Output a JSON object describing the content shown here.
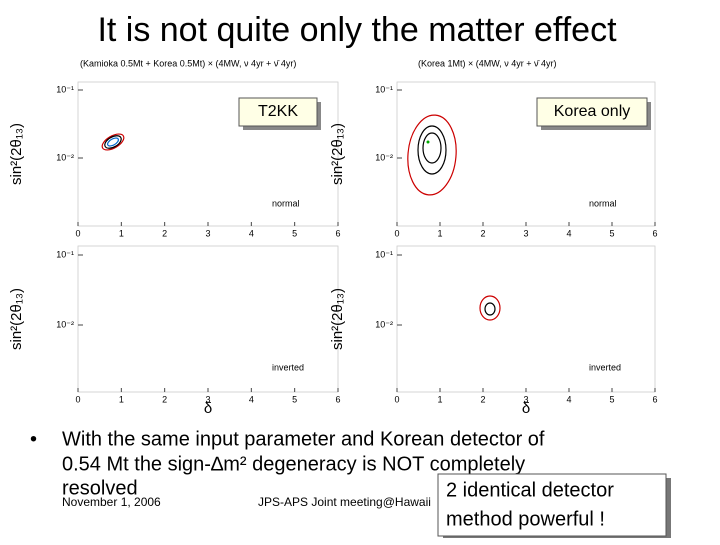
{
  "title": "It is not quite only the matter effect",
  "plots": {
    "left_header": "(Kamioka 0.5Mt + Korea 0.5Mt) × (4MW, ν 4yr + ν̄ 4yr)",
    "right_header": "(Korea 1Mt) × (4MW, ν 4yr + ν̄ 4yr)",
    "left_box": "T2KK",
    "right_box": "Korea only",
    "y_label": "sin²(2θ₁₃)",
    "x_label": "δ",
    "x_ticks": [
      0,
      1,
      2,
      3,
      4,
      5,
      6
    ],
    "y_ticks": [
      "10⁻¹",
      "10⁻²"
    ],
    "hierarchies": [
      "normal",
      "inverted"
    ]
  },
  "bullet": {
    "marker": "•",
    "lines": [
      "With the same input parameter and Korean detector of",
      "0.54 Mt the sign-∆m² degeneracy is NOT completely",
      "resolved"
    ]
  },
  "footer": {
    "date": "November 1, 2006",
    "event": "JPS-APS Joint meeting@Hawaii"
  },
  "callout": [
    "2 identical detector",
    "method powerful !"
  ]
}
